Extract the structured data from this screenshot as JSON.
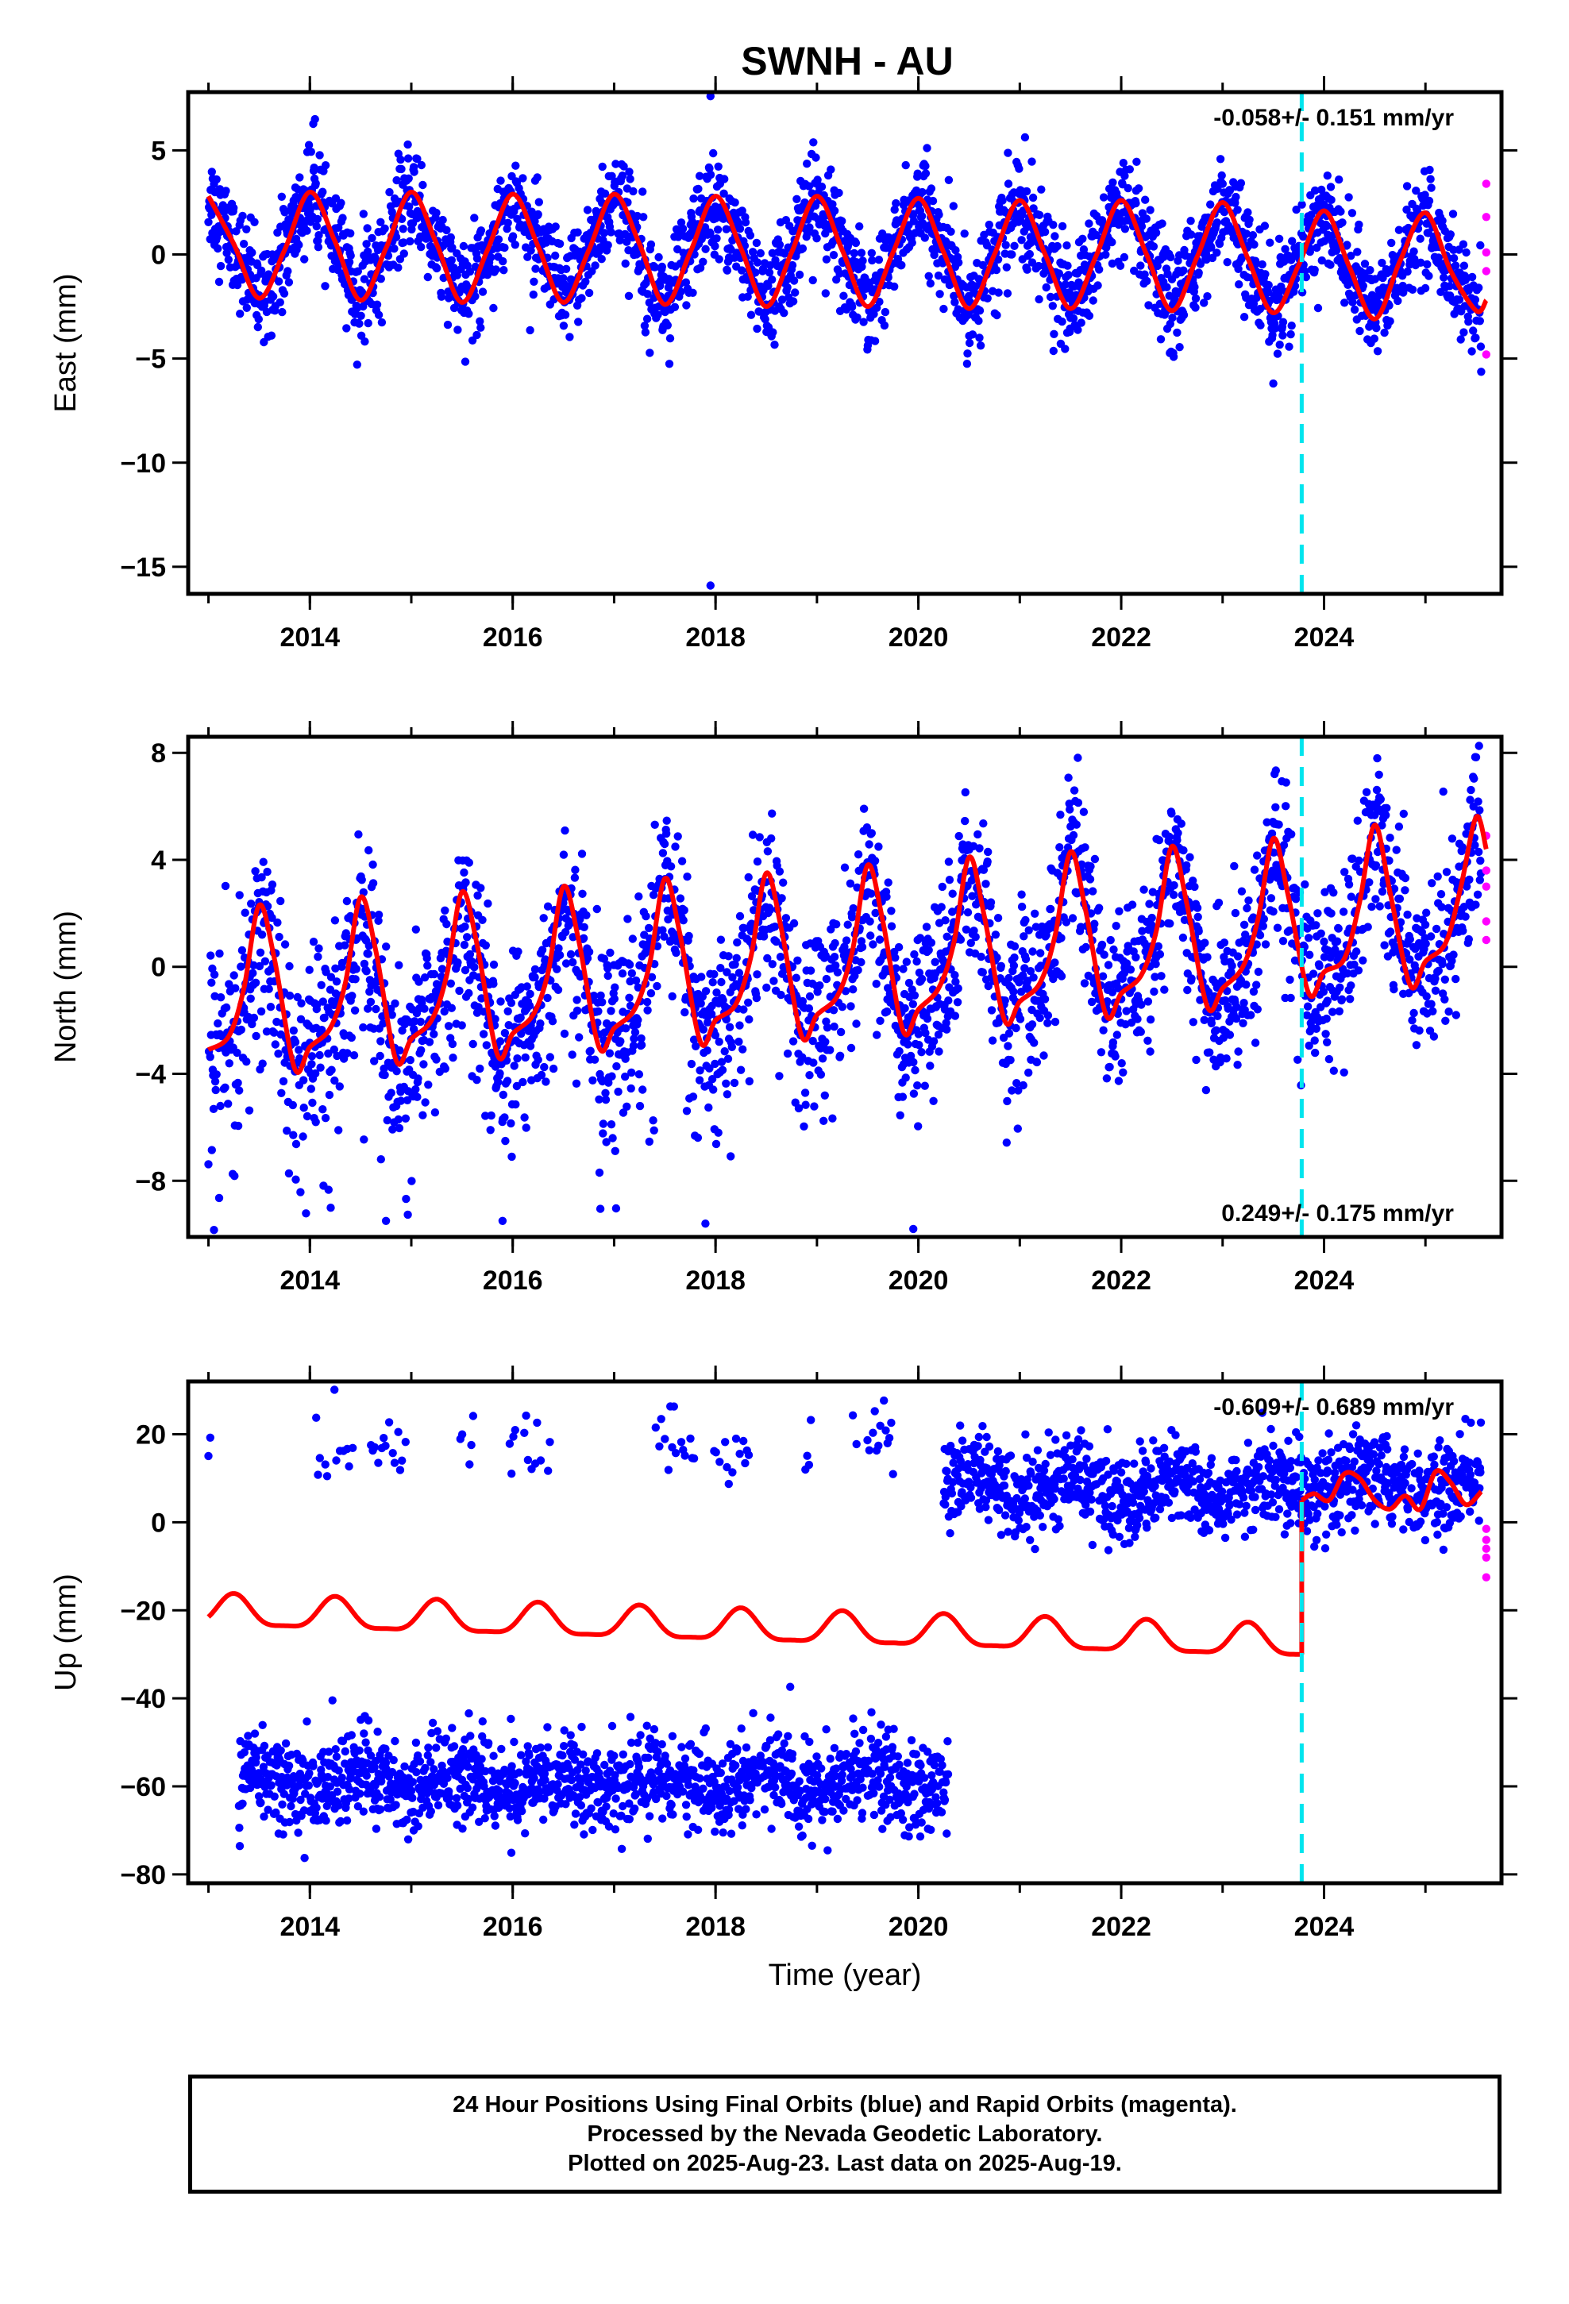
{
  "title": "SWNH - AU",
  "colors": {
    "final_orbits": "#0000ff",
    "rapid_orbits": "#ff00ff",
    "model": "#ff0000",
    "event_line": "#00e5ee",
    "frame": "#000000"
  },
  "chart_data": [
    {
      "type": "scatter",
      "name": "east",
      "ylabel": "East (mm)",
      "xlim": [
        2012.8,
        2025.75
      ],
      "ylim": [
        -16.3,
        7.8
      ],
      "yticks": [
        5,
        0,
        -5,
        -10,
        -15
      ],
      "ytick_labels": [
        "5",
        "0",
        "−5",
        "−10",
        "−15"
      ],
      "xticks": [
        2014,
        2016,
        2018,
        2020,
        2022,
        2024
      ],
      "xtick_labels": [
        "2014",
        "2016",
        "2018",
        "2020",
        "2022",
        "2024"
      ],
      "rate_label": "-0.058+/- 0.151 mm/yr",
      "rate_label_position": "top-right",
      "event_line_x": 2023.78,
      "final_orbits": {
        "x_range": [
          2013.0,
          2025.55
        ],
        "mean": 0.0,
        "annual_amplitude": 2.6,
        "annual_phase_peak": 2013.95,
        "scatter_sd": 1.2
      },
      "rapid_orbits": {
        "x": [
          2025.6,
          2025.6,
          2025.6,
          2025.6,
          2025.6
        ],
        "y": [
          3.4,
          1.8,
          0.1,
          -0.8,
          -4.8
        ]
      },
      "model_curve": {
        "x": [
          2013.0,
          2013.25,
          2013.5,
          2013.75,
          2014.0,
          2014.25,
          2014.5,
          2014.75,
          2015.0,
          2015.25,
          2015.5,
          2015.75,
          2016.0,
          2016.25,
          2016.5,
          2016.75,
          2017.0,
          2017.25,
          2017.5,
          2017.75,
          2018.0,
          2018.25,
          2018.5,
          2018.75,
          2019.0,
          2019.25,
          2019.5,
          2019.75,
          2020.0,
          2020.25,
          2020.5,
          2020.75,
          2021.0,
          2021.25,
          2021.5,
          2021.75,
          2022.0,
          2022.25,
          2022.5,
          2022.75,
          2023.0,
          2023.25,
          2023.5,
          2023.75,
          2024.0,
          2024.25,
          2024.5,
          2024.75,
          2025.0,
          2025.25,
          2025.5,
          2025.6
        ],
        "y": [
          2.8,
          0.5,
          -2.1,
          0.2,
          3.0,
          0.6,
          -2.2,
          0.3,
          3.0,
          0.5,
          -2.3,
          0.2,
          2.9,
          0.4,
          -2.3,
          0.2,
          2.9,
          0.5,
          -2.4,
          0.1,
          2.8,
          0.3,
          -2.5,
          0.1,
          2.8,
          0.2,
          -2.5,
          0.1,
          2.7,
          0.1,
          -2.6,
          0.0,
          2.6,
          0.0,
          -2.6,
          -0.1,
          2.6,
          0.0,
          -2.7,
          -0.1,
          2.5,
          -0.2,
          -2.8,
          -0.5,
          2.1,
          -0.6,
          -3.1,
          -0.3,
          2.0,
          -0.8,
          -2.7,
          -2.2
        ]
      },
      "outliers": {
        "x": [
          2014.05,
          2017.95,
          2017.95,
          2023.5
        ],
        "y": [
          6.5,
          7.6,
          -15.9,
          -6.2
        ]
      }
    },
    {
      "type": "scatter",
      "name": "north",
      "ylabel": "North (mm)",
      "xlim": [
        2012.8,
        2025.75
      ],
      "ylim": [
        -10.1,
        8.6
      ],
      "yticks": [
        8,
        4,
        0,
        -4,
        -8
      ],
      "ytick_labels": [
        "8",
        "4",
        "0",
        "−4",
        "−8"
      ],
      "xticks": [
        2014,
        2016,
        2018,
        2020,
        2022,
        2024
      ],
      "xtick_labels": [
        "2014",
        "2016",
        "2018",
        "2020",
        "2022",
        "2024"
      ],
      "rate_label": "0.249+/- 0.175 mm/yr",
      "rate_label_position": "bottom-right",
      "event_line_x": 2023.78,
      "final_orbits": {
        "x_range": [
          2013.0,
          2025.55
        ],
        "annual_phase_peak": 2013.5,
        "scatter_sd": 1.6
      },
      "rapid_orbits": {
        "x": [
          2025.6,
          2025.6,
          2025.6,
          2025.6,
          2025.6
        ],
        "y": [
          4.9,
          3.6,
          3.0,
          1.7,
          1.0
        ]
      },
      "model_curve": {
        "x": [
          2013.0,
          2013.2,
          2013.35,
          2013.5,
          2013.65,
          2013.85,
          2014.0,
          2014.2,
          2014.35,
          2014.5,
          2014.65,
          2014.85,
          2015.0,
          2015.2,
          2015.35,
          2015.5,
          2015.65,
          2015.85,
          2016.0,
          2016.2,
          2016.35,
          2016.5,
          2016.65,
          2016.85,
          2017.0,
          2017.2,
          2017.35,
          2017.5,
          2017.65,
          2017.85,
          2018.0,
          2018.2,
          2018.35,
          2018.5,
          2018.65,
          2018.85,
          2019.0,
          2019.2,
          2019.35,
          2019.5,
          2019.65,
          2019.85,
          2020.0,
          2020.2,
          2020.35,
          2020.5,
          2020.65,
          2020.85,
          2021.0,
          2021.2,
          2021.35,
          2021.5,
          2021.65,
          2021.85,
          2022.0,
          2022.2,
          2022.35,
          2022.5,
          2022.65,
          2022.85,
          2023.0,
          2023.2,
          2023.35,
          2023.5,
          2023.65,
          2023.85,
          2024.0,
          2024.2,
          2024.35,
          2024.5,
          2024.65,
          2024.85,
          2025.0,
          2025.2,
          2025.35,
          2025.5,
          2025.6
        ],
        "y": [
          -3.1,
          -2.6,
          -0.8,
          2.3,
          0.3,
          -3.8,
          -3.0,
          -2.3,
          -0.6,
          2.6,
          0.6,
          -3.5,
          -2.7,
          -2.0,
          -0.3,
          2.8,
          0.8,
          -3.3,
          -2.5,
          -1.8,
          -0.2,
          3.0,
          1.0,
          -3.0,
          -2.3,
          -1.6,
          0.1,
          3.3,
          1.2,
          -2.8,
          -2.0,
          -1.4,
          0.4,
          3.5,
          1.4,
          -2.6,
          -1.8,
          -1.1,
          0.6,
          3.8,
          1.7,
          -2.4,
          -1.6,
          -0.8,
          0.9,
          4.1,
          1.9,
          -2.0,
          -1.3,
          -0.6,
          1.2,
          4.3,
          2.1,
          -1.8,
          -1.0,
          -0.3,
          1.4,
          4.5,
          2.3,
          -1.5,
          -0.8,
          0.0,
          1.8,
          4.8,
          2.6,
          -1.0,
          -0.2,
          0.3,
          2.4,
          5.3,
          2.8,
          -0.7,
          0.2,
          0.9,
          3.0,
          5.6,
          4.4
        ]
      },
      "outliers": {
        "x": [
          2014.75,
          2015.9,
          2017.9,
          2019.95
        ],
        "y": [
          -9.5,
          -9.5,
          -9.6,
          -9.8
        ]
      }
    },
    {
      "type": "scatter",
      "name": "up",
      "ylabel": "Up (mm)",
      "xlabel": "Time (year)",
      "xlim": [
        2012.8,
        2025.75
      ],
      "ylim": [
        -82,
        32
      ],
      "yticks": [
        20,
        0,
        -20,
        -40,
        -60,
        -80
      ],
      "ytick_labels": [
        "20",
        "0",
        "−20",
        "−40",
        "−60",
        "−80"
      ],
      "xticks": [
        2014,
        2016,
        2018,
        2020,
        2022,
        2024
      ],
      "xtick_labels": [
        "2014",
        "2016",
        "2018",
        "2020",
        "2022",
        "2024"
      ],
      "rate_label": "-0.609+/- 0.689 mm/yr",
      "rate_label_position": "top-right",
      "event_line_x": 2023.78,
      "final_orbits_segments": [
        {
          "x_range": [
            2013.0,
            2020.3
          ],
          "mean": 17,
          "sd": 4,
          "density": "sparse"
        },
        {
          "x_range": [
            2013.3,
            2020.3
          ],
          "mean": -59,
          "sd": 5,
          "density": "dense"
        },
        {
          "x_range": [
            2020.25,
            2025.55
          ],
          "mean": 8,
          "sd": 5,
          "density": "dense"
        }
      ],
      "rapid_orbits": {
        "x": [
          2025.6,
          2025.6,
          2025.6,
          2025.6,
          2025.6
        ],
        "y": [
          -1.5,
          -4.0,
          -6.0,
          -8.0,
          -12.5
        ]
      },
      "model_curve": {
        "before_event": {
          "x_range": [
            2013.0,
            2023.75
          ],
          "start_mean": -20.5,
          "end_mean": -27.5,
          "annual_amplitude": 3.5,
          "peak": 2013.25
        },
        "after_event": {
          "x": [
            2023.78,
            2023.9,
            2024.05,
            2024.2,
            2024.35,
            2024.5,
            2024.65,
            2024.8,
            2024.95,
            2025.1,
            2025.25,
            2025.4,
            2025.55
          ],
          "y": [
            5.0,
            6.5,
            5.0,
            11.0,
            10.0,
            5.0,
            3.0,
            6.0,
            3.0,
            11.5,
            9.0,
            4.0,
            7.0
          ]
        }
      }
    }
  ],
  "caption": {
    "line1": "24 Hour Positions Using Final Orbits (blue) and Rapid Orbits (magenta).",
    "line2": "Processed by the Nevada Geodetic Laboratory.",
    "line3": "Plotted on 2025-Aug-23. Last data on 2025-Aug-19."
  }
}
